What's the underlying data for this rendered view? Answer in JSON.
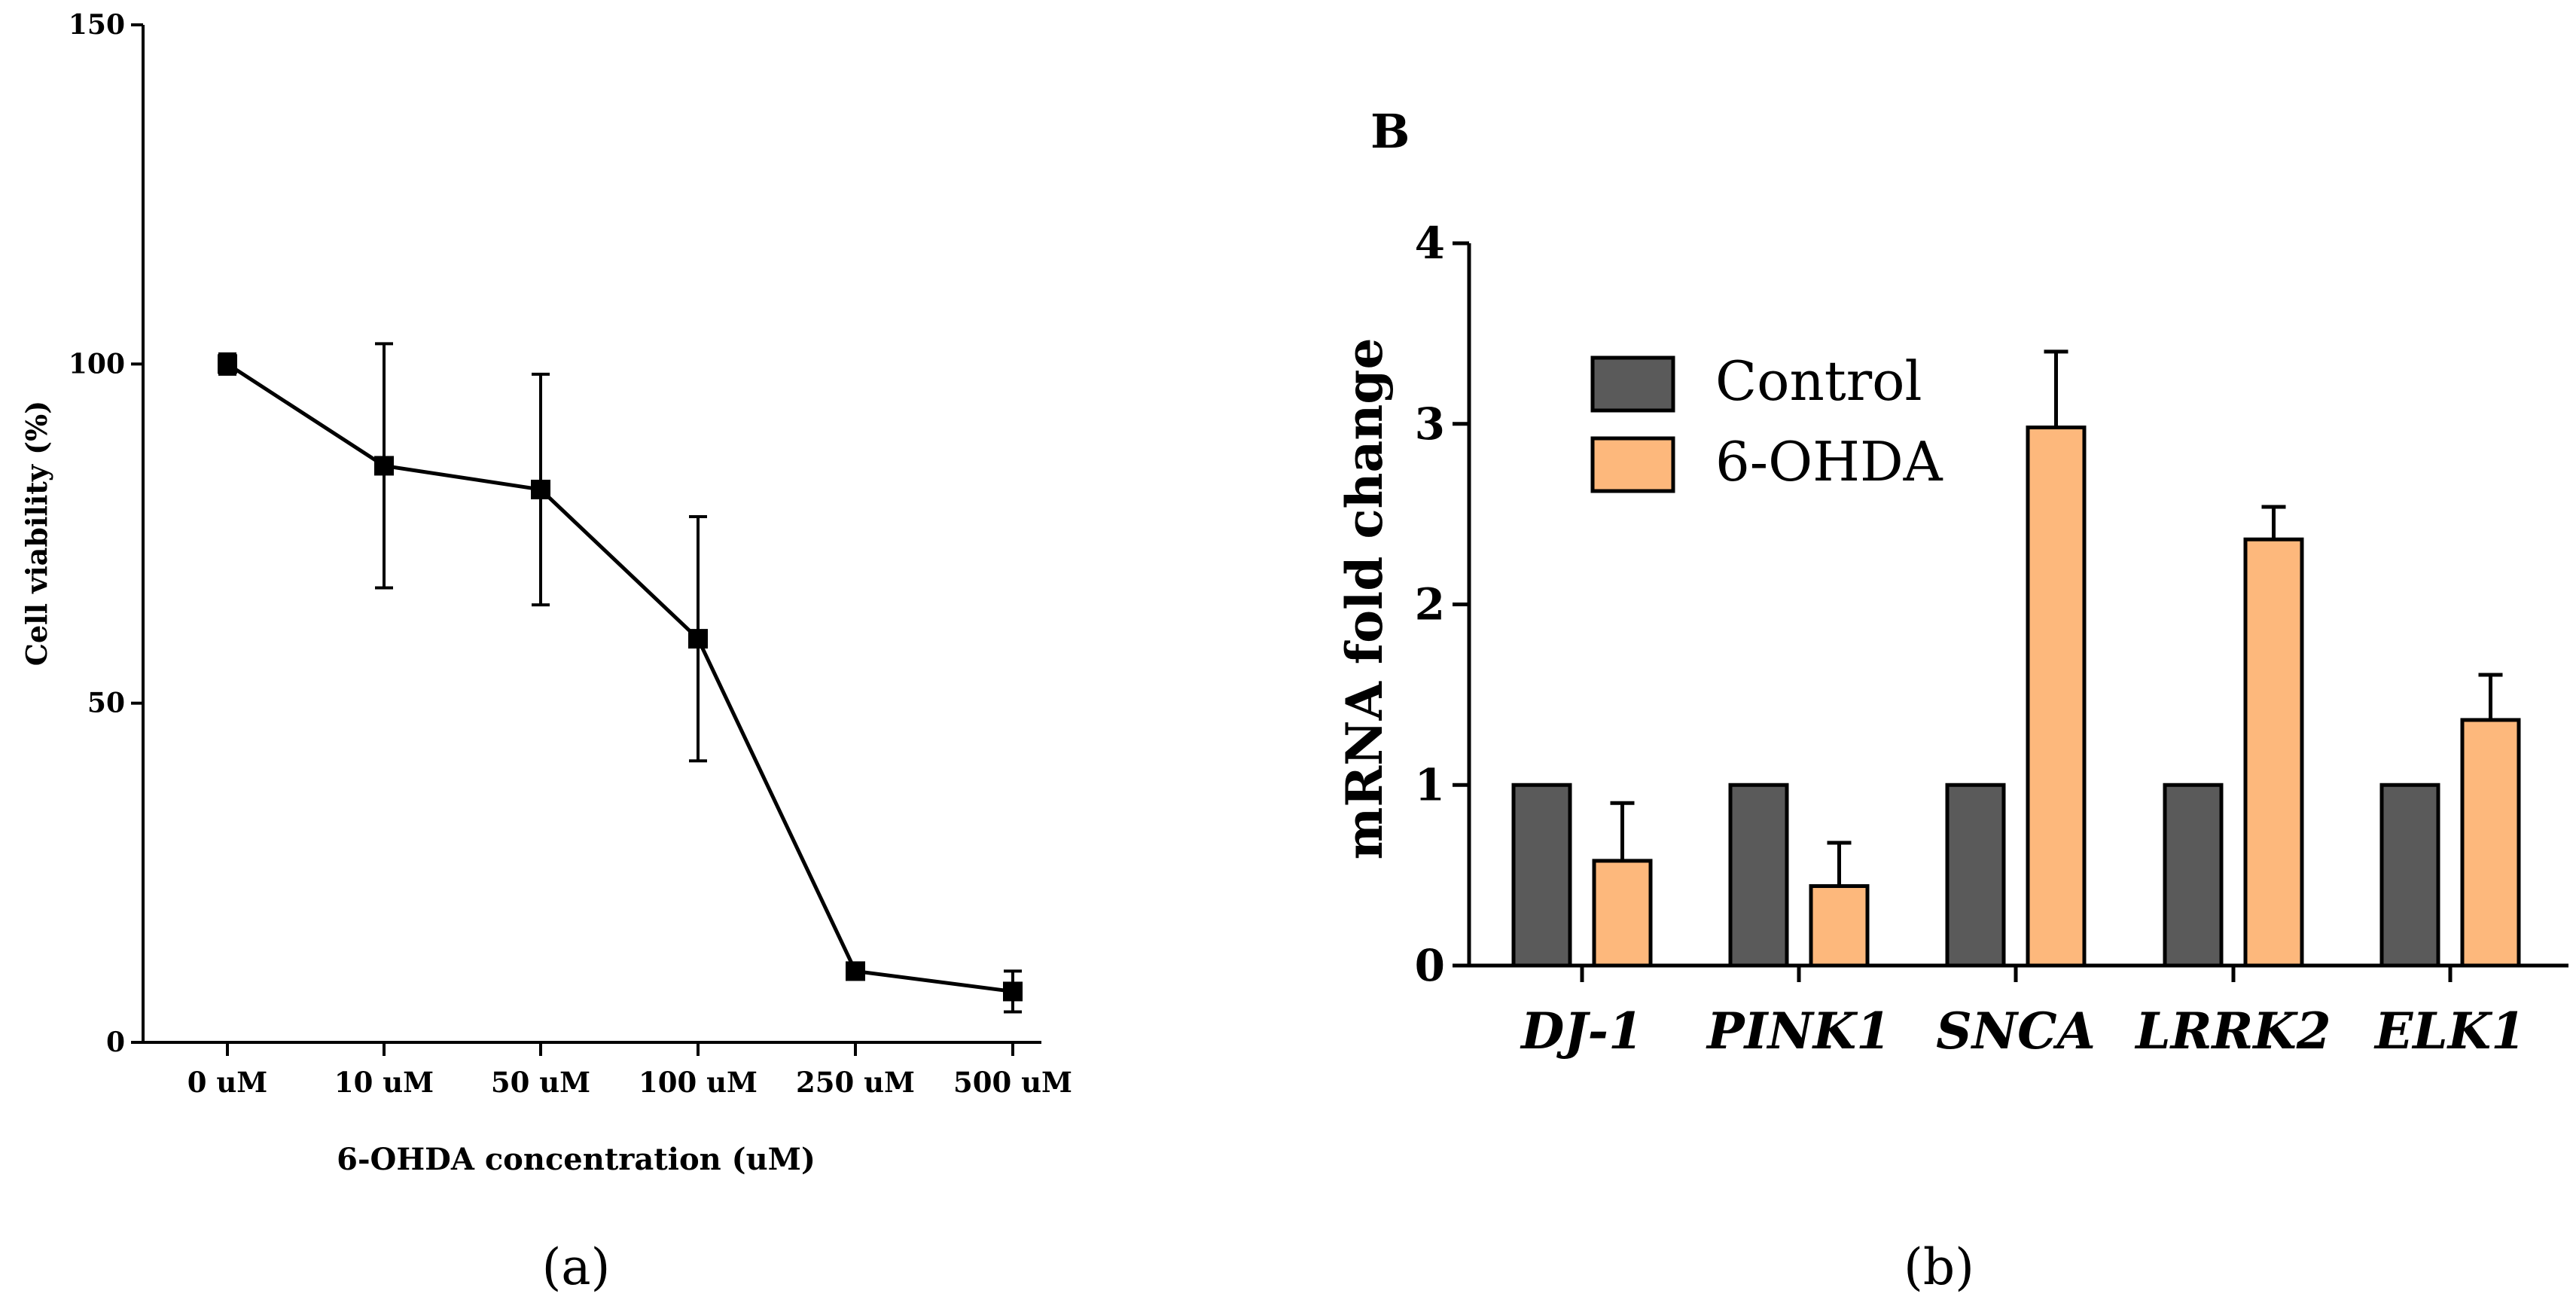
{
  "chart_data": [
    {
      "type": "line",
      "panel_label": "(a)",
      "title": "",
      "xlabel": "6-OHDA concentration (uM)",
      "ylabel": "Cell viability (%)",
      "ylim": [
        0,
        150
      ],
      "yticks": [
        0,
        50,
        100,
        150
      ],
      "categories": [
        "0 uM",
        "10 uM",
        "50 uM",
        "100 uM",
        "250 uM",
        "500 uM"
      ],
      "values": [
        100,
        85,
        81.5,
        59.5,
        10.5,
        7.5
      ],
      "errors": [
        1.5,
        18,
        17,
        18,
        1,
        3
      ],
      "grid": false
    },
    {
      "type": "bar",
      "panel_label": "(b)",
      "corner_label": "B",
      "title": "",
      "xlabel": "",
      "ylabel": "mRNA fold change",
      "ylim": [
        0,
        4
      ],
      "yticks": [
        0,
        1,
        2,
        3,
        4
      ],
      "categories": [
        "DJ-1",
        "PINK1",
        "SNCA",
        "LRRK2",
        "ELK1"
      ],
      "series": [
        {
          "name": "Control",
          "color": "#5a5a5a",
          "values": [
            1,
            1,
            1,
            1,
            1
          ],
          "errors": [
            0,
            0,
            0,
            0,
            0
          ]
        },
        {
          "name": "6-OHDA",
          "color": "#fdb87c",
          "values": [
            0.58,
            0.44,
            2.98,
            2.36,
            1.36
          ],
          "errors": [
            0.32,
            0.24,
            0.42,
            0.18,
            0.25
          ]
        }
      ],
      "legend_position": "top-left",
      "grid": false
    }
  ]
}
